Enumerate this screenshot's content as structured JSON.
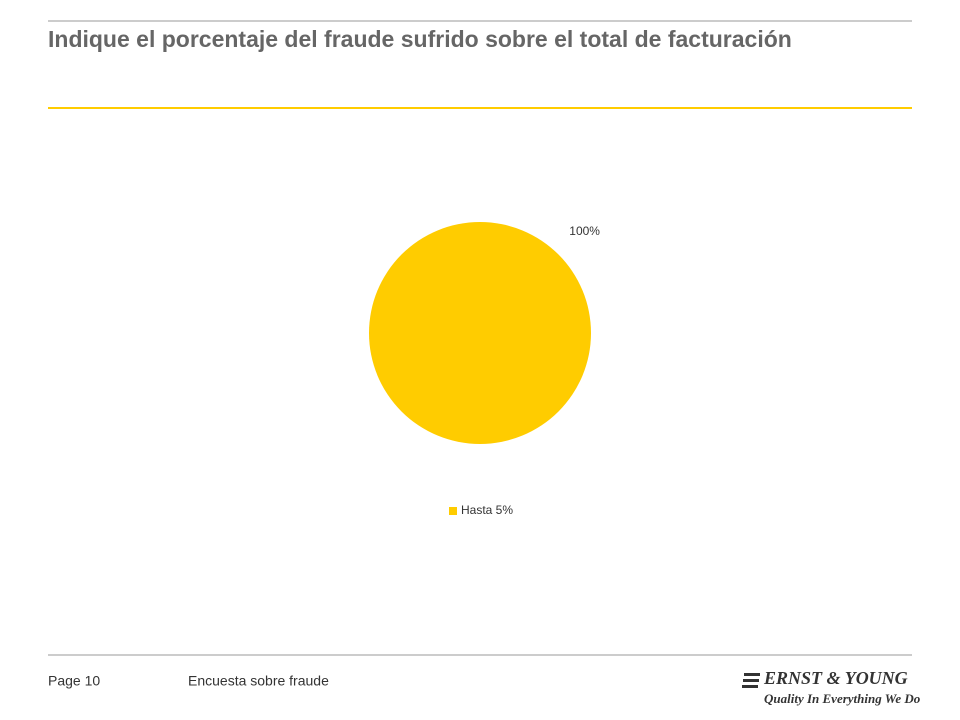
{
  "chart_data": {
    "type": "pie",
    "title": "Indique el porcentaje del fraude sufrido sobre el total de facturación",
    "categories": [
      "Hasta 5%"
    ],
    "values": [
      100
    ],
    "value_labels": [
      "100%"
    ],
    "colors": [
      "#ffcc00"
    ],
    "legend": "bottom"
  },
  "footer": {
    "page": "Page 10",
    "subject": "Encuesta sobre fraude",
    "brand": "ERNST & YOUNG",
    "tagline": "Quality In Everything We Do"
  }
}
